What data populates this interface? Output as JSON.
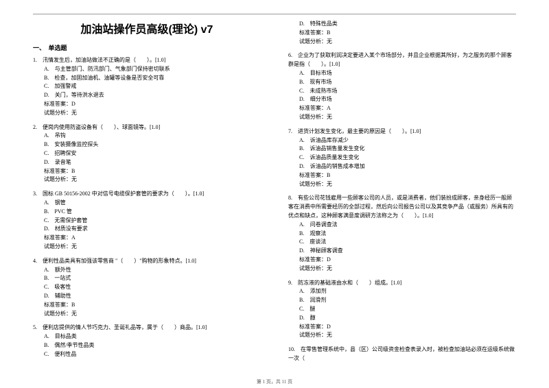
{
  "title": "加油站操作员高级(理论) v7",
  "section_header": "一、　单选题",
  "footer": "第 1 页，共 11 页",
  "left_questions": [
    {
      "num": "1.",
      "stem": "汛情发生后，加油站做法不正确的是（　　）。[1.0]",
      "options": [
        "A.　与主管部门、防汛部门、气象部门保持密切联系",
        "B.　检查，加固加油机、油罐等设备是否安全可靠",
        "C.　加强警戒",
        "D.　关门，等待洪水退去"
      ],
      "answer": "标准答案：D",
      "analysis": "试题分析：无"
    },
    {
      "num": "2.",
      "stem": "便岗内使用防盗设备有（　　）、球面镜等。[1.0]",
      "options": [
        "A.　吊钩",
        "B.　安装摄像监控探头",
        "C.　招聘保安",
        "D.　录音笔"
      ],
      "answer": "标准答案：B",
      "analysis": "试题分析：无"
    },
    {
      "num": "3.",
      "stem": "国标 GB 50156-2002 中对信号电缆保护套管的要求为（　　）。[1.0]",
      "options": [
        "A.　钢管",
        "B.　PVC 管",
        "C.　无需保护套管",
        "D.　材质没有要求"
      ],
      "answer": "标准答案：A",
      "analysis": "试题分析：无"
    },
    {
      "num": "4.",
      "stem": "便利性品类具有加强该零售商 \"（　　）\"购物的形象特点。[1.0]",
      "options": [
        "A.　额外性",
        "B.　一站式",
        "C.　吸客性",
        "D.　辅助性"
      ],
      "answer": "标准答案：B",
      "analysis": "试题分析：无"
    },
    {
      "num": "5.",
      "stem": "便利店提供的情人节巧克力、圣诞礼品等，属于（　　）商品。[1.0]",
      "options": [
        "A.　目标品类",
        "B.　偶然/季节性品类",
        "C.　便利性品"
      ]
    }
  ],
  "right_questions_prefix": {
    "options": [
      "D.　特殊性品类"
    ],
    "answer": "标准答案：B",
    "analysis": "试题分析：无"
  },
  "right_questions": [
    {
      "num": "6.",
      "stem": "企业为了获取利润决定要进入某个市场部分，并且企业根据其所好，为之服务的那个顾客群是指（　　）。[1.0]",
      "options": [
        "A.　目标市场",
        "B.　现有市场",
        "C.　未成熟市场",
        "D.　细分市场"
      ],
      "answer": "标准答案：A",
      "analysis": "试题分析：无"
    },
    {
      "num": "7.",
      "stem": "进货计划发生变化，最主要的原因是（　　）。[1.0]",
      "options": [
        "A.　诉油品库存减少",
        "B.　诉油品销售量发生变化",
        "C.　诉油品质量发生变化",
        "D.　诉油品的销售成本增加"
      ],
      "answer": "标准答案：B",
      "analysis": "试题分析：无"
    },
    {
      "num": "8.",
      "stem": "有些公司花钱雇用一些顾客公司的人员，或是消费者，他们装扮成顾客，亲身经历一般顾客在消费中所需要经历的全部过程，然后向公司报告公司以及其竞争产品（或服务）所具有的优点和缺点，这种顾客满意度调研方法称之为（　　）。[1.0]",
      "options": [
        "A.　问卷调查法",
        "B.　观察法",
        "C.　座谈法",
        "D.　神秘顾客调查"
      ],
      "answer": "标准答案：D",
      "analysis": "试题分析：无"
    },
    {
      "num": "9.",
      "stem": "防冻液的基础液由水和（　　）组成。[1.0]",
      "options": [
        "A.　添加剂",
        "B.　润滑剂",
        "C.　醚",
        "D.　醇"
      ],
      "answer": "标准答案：D",
      "analysis": "试题分析：无"
    },
    {
      "num": "10.",
      "stem": "在零售管理系统中，县（区）公司级资金检查表录入时，被检查加油站必须在运级系统做一次（"
    }
  ]
}
